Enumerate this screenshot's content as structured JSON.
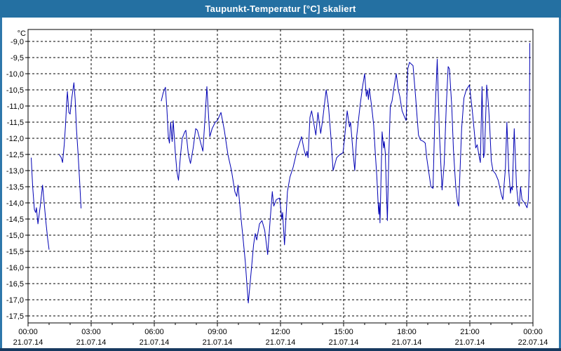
{
  "window": {
    "title": "Taupunkt-Temperatur [°C] skaliert"
  },
  "colors": {
    "titlebar_bg": "#2470a2",
    "titlebar_text": "#ffffff",
    "window_border_side": "#2e77ab",
    "window_border_bottom": "#17395f",
    "plot_background": "#ffffff",
    "plot_frame": "#000000",
    "grid": "#000000",
    "series_line": "#0000b4"
  },
  "chart_data": {
    "type": "line",
    "title": "Taupunkt-Temperatur [°C] skaliert",
    "legend_position": "none",
    "grid": {
      "style": "dashed",
      "color": "#000000",
      "x_step_hours": 3,
      "y_step": 0.5
    },
    "y_axis": {
      "unit_label": "°C",
      "tick_labels": [
        "-9,0",
        "-9,5",
        "-10,0",
        "-10,5",
        "-11,0",
        "-11,5",
        "-12,0",
        "-12,5",
        "-13,0",
        "-13,5",
        "-14,0",
        "-14,5",
        "-15,0",
        "-15,5",
        "-16,0",
        "-16,5",
        "-17,0",
        "-17,5"
      ],
      "tick_values": [
        -9.0,
        -9.5,
        -10.0,
        -10.5,
        -11.0,
        -11.5,
        -12.0,
        -12.5,
        -13.0,
        -13.5,
        -14.0,
        -14.5,
        -15.0,
        -15.5,
        -16.0,
        -16.5,
        -17.0,
        -17.5
      ],
      "range_shown": [
        -17.72,
        -8.63
      ]
    },
    "x_axis": {
      "hours_range": [
        0,
        24
      ],
      "major_step_hours": 3,
      "minor_step_hours": 1,
      "tick_times": [
        "00:00",
        "03:00",
        "06:00",
        "09:00",
        "12:00",
        "15:00",
        "18:00",
        "21:00",
        "00:00"
      ],
      "tick_dates": [
        "21.07.14",
        "21.07.14",
        "21.07.14",
        "21.07.14",
        "21.07.14",
        "21.07.14",
        "21.07.14",
        "21.07.14",
        "22.07.14"
      ]
    },
    "series": [
      {
        "name": "Taupunkt-Temperatur [°C] skaliert",
        "unit": "°C",
        "color": "#0000b4",
        "segments": [
          [
            [
              0.15,
              -12.6
            ],
            [
              0.22,
              -13.5
            ],
            [
              0.3,
              -14.2
            ],
            [
              0.36,
              -14.3
            ],
            [
              0.4,
              -14.15
            ],
            [
              0.47,
              -14.65
            ],
            [
              0.58,
              -14.1
            ],
            [
              0.69,
              -13.45
            ],
            [
              0.78,
              -14.1
            ],
            [
              0.85,
              -14.6
            ],
            [
              0.93,
              -15.1
            ],
            [
              1.0,
              -15.45
            ]
          ],
          [
            [
              1.48,
              -12.5
            ],
            [
              1.58,
              -12.6
            ],
            [
              1.64,
              -12.75
            ],
            [
              1.72,
              -12.2
            ],
            [
              1.78,
              -11.6
            ],
            [
              1.83,
              -10.95
            ],
            [
              1.87,
              -10.55
            ],
            [
              1.94,
              -11.2
            ],
            [
              2.0,
              -11.25
            ],
            [
              2.07,
              -10.8
            ],
            [
              2.18,
              -10.28
            ],
            [
              2.24,
              -10.8
            ],
            [
              2.3,
              -11.7
            ],
            [
              2.38,
              -12.5
            ],
            [
              2.45,
              -13.3
            ],
            [
              2.52,
              -14.17
            ]
          ],
          [
            [
              6.33,
              -10.85
            ],
            [
              6.42,
              -10.6
            ],
            [
              6.53,
              -10.42
            ],
            [
              6.6,
              -11.1
            ],
            [
              6.67,
              -11.95
            ],
            [
              6.72,
              -12.15
            ],
            [
              6.78,
              -11.5
            ],
            [
              6.85,
              -12.1
            ],
            [
              6.9,
              -11.45
            ],
            [
              7.0,
              -12.45
            ],
            [
              7.08,
              -13.05
            ],
            [
              7.15,
              -13.3
            ],
            [
              7.25,
              -12.5
            ],
            [
              7.33,
              -12.0
            ],
            [
              7.45,
              -11.8
            ],
            [
              7.5,
              -11.75
            ],
            [
              7.62,
              -12.5
            ],
            [
              7.72,
              -12.78
            ],
            [
              7.85,
              -12.3
            ],
            [
              7.97,
              -11.7
            ],
            [
              8.05,
              -11.75
            ],
            [
              8.17,
              -12.05
            ],
            [
              8.31,
              -12.4
            ],
            [
              8.42,
              -11.3
            ],
            [
              8.5,
              -10.4
            ],
            [
              8.58,
              -11.3
            ],
            [
              8.64,
              -11.95
            ],
            [
              8.75,
              -11.7
            ],
            [
              8.9,
              -11.5
            ],
            [
              9.0,
              -11.45
            ],
            [
              9.17,
              -11.2
            ],
            [
              9.33,
              -11.75
            ],
            [
              9.5,
              -12.5
            ],
            [
              9.67,
              -13.0
            ],
            [
              9.83,
              -13.65
            ],
            [
              9.92,
              -13.8
            ],
            [
              9.98,
              -13.45
            ],
            [
              10.11,
              -14.38
            ],
            [
              10.22,
              -15.1
            ],
            [
              10.33,
              -15.85
            ],
            [
              10.4,
              -16.5
            ],
            [
              10.47,
              -17.1
            ],
            [
              10.61,
              -16.1
            ],
            [
              10.72,
              -15.3
            ],
            [
              10.8,
              -14.95
            ],
            [
              10.87,
              -15.15
            ],
            [
              11.0,
              -14.65
            ],
            [
              11.12,
              -14.55
            ],
            [
              11.25,
              -14.85
            ],
            [
              11.39,
              -15.6
            ],
            [
              11.5,
              -14.6
            ],
            [
              11.61,
              -13.65
            ],
            [
              11.68,
              -14.1
            ],
            [
              11.8,
              -13.9
            ],
            [
              11.95,
              -13.85
            ],
            [
              12.0,
              -14.1
            ],
            [
              12.06,
              -14.5
            ],
            [
              12.1,
              -14.3
            ],
            [
              12.19,
              -15.3
            ],
            [
              12.33,
              -13.65
            ],
            [
              12.45,
              -13.2
            ],
            [
              12.6,
              -12.9
            ],
            [
              12.78,
              -12.4
            ],
            [
              13.0,
              -11.95
            ],
            [
              13.12,
              -12.35
            ],
            [
              13.2,
              -12.55
            ],
            [
              13.26,
              -12.4
            ],
            [
              13.31,
              -12.6
            ],
            [
              13.4,
              -11.35
            ],
            [
              13.48,
              -11.15
            ],
            [
              13.6,
              -11.6
            ],
            [
              13.68,
              -11.9
            ],
            [
              13.78,
              -11.2
            ],
            [
              13.85,
              -11.55
            ],
            [
              13.91,
              -11.85
            ],
            [
              14.0,
              -11.45
            ],
            [
              14.17,
              -10.5
            ],
            [
              14.28,
              -11.0
            ],
            [
              14.39,
              -11.9
            ],
            [
              14.5,
              -13.0
            ],
            [
              14.67,
              -12.6
            ],
            [
              14.83,
              -12.5
            ],
            [
              14.97,
              -12.45
            ],
            [
              15.03,
              -12.1
            ],
            [
              15.17,
              -11.15
            ],
            [
              15.28,
              -11.65
            ],
            [
              15.33,
              -11.5
            ],
            [
              15.45,
              -12.45
            ],
            [
              15.53,
              -13.0
            ],
            [
              15.62,
              -11.95
            ],
            [
              15.78,
              -11.0
            ],
            [
              15.9,
              -10.4
            ],
            [
              16.0,
              -10.0
            ],
            [
              16.08,
              -10.7
            ],
            [
              16.13,
              -10.5
            ],
            [
              16.18,
              -10.8
            ],
            [
              16.22,
              -10.45
            ],
            [
              16.33,
              -11.0
            ],
            [
              16.43,
              -11.6
            ],
            [
              16.5,
              -12.4
            ],
            [
              16.58,
              -13.2
            ],
            [
              16.64,
              -14.0
            ],
            [
              16.67,
              -14.35
            ],
            [
              16.7,
              -14.0
            ],
            [
              16.73,
              -14.62
            ],
            [
              16.83,
              -11.8
            ],
            [
              16.9,
              -12.3
            ],
            [
              16.93,
              -12.1
            ],
            [
              16.98,
              -12.45
            ],
            [
              17.03,
              -13.5
            ],
            [
              17.08,
              -14.55
            ],
            [
              17.15,
              -12.5
            ],
            [
              17.22,
              -11.0
            ],
            [
              17.3,
              -10.85
            ],
            [
              17.4,
              -10.4
            ],
            [
              17.5,
              -10.0
            ],
            [
              17.6,
              -10.5
            ],
            [
              17.67,
              -10.7
            ],
            [
              17.78,
              -11.15
            ],
            [
              17.9,
              -11.35
            ],
            [
              17.97,
              -11.45
            ],
            [
              18.05,
              -9.85
            ],
            [
              18.13,
              -9.65
            ],
            [
              18.3,
              -9.75
            ],
            [
              18.42,
              -10.7
            ],
            [
              18.5,
              -11.4
            ],
            [
              18.56,
              -11.9
            ],
            [
              18.65,
              -12.05
            ],
            [
              18.8,
              -12.1
            ],
            [
              18.88,
              -12.15
            ],
            [
              18.95,
              -12.6
            ],
            [
              19.06,
              -13.1
            ],
            [
              19.15,
              -13.5
            ],
            [
              19.25,
              -13.55
            ],
            [
              19.33,
              -11.5
            ],
            [
              19.45,
              -9.55
            ],
            [
              19.55,
              -11.8
            ],
            [
              19.68,
              -13.6
            ],
            [
              19.78,
              -12.8
            ],
            [
              19.88,
              -11.0
            ],
            [
              19.97,
              -9.78
            ],
            [
              20.03,
              -9.85
            ],
            [
              20.14,
              -11.0
            ],
            [
              20.22,
              -12.35
            ],
            [
              20.33,
              -13.5
            ],
            [
              20.42,
              -14.0
            ],
            [
              20.47,
              -14.1
            ],
            [
              20.61,
              -11.7
            ],
            [
              20.72,
              -10.75
            ],
            [
              20.83,
              -10.5
            ],
            [
              20.98,
              -10.35
            ],
            [
              21.11,
              -11.1
            ],
            [
              21.22,
              -11.85
            ],
            [
              21.28,
              -12.3
            ],
            [
              21.35,
              -12.2
            ],
            [
              21.44,
              -12.55
            ],
            [
              21.5,
              -12.75
            ],
            [
              21.58,
              -10.4
            ],
            [
              21.65,
              -12.6
            ],
            [
              21.7,
              -12.45
            ],
            [
              21.8,
              -10.35
            ],
            [
              21.89,
              -11.0
            ],
            [
              21.95,
              -11.7
            ],
            [
              22.02,
              -12.7
            ],
            [
              22.1,
              -13.0
            ],
            [
              22.22,
              -13.1
            ],
            [
              22.35,
              -13.3
            ],
            [
              22.5,
              -13.75
            ],
            [
              22.57,
              -13.9
            ],
            [
              22.69,
              -12.95
            ],
            [
              22.76,
              -11.5
            ],
            [
              22.85,
              -13.0
            ],
            [
              22.93,
              -13.7
            ],
            [
              22.97,
              -13.5
            ],
            [
              23.02,
              -13.6
            ],
            [
              23.11,
              -11.7
            ],
            [
              23.22,
              -13.5
            ],
            [
              23.3,
              -14.0
            ],
            [
              23.35,
              -14.1
            ],
            [
              23.41,
              -13.5
            ],
            [
              23.48,
              -13.9
            ],
            [
              23.6,
              -14.0
            ],
            [
              23.72,
              -14.15
            ],
            [
              23.78,
              -13.9
            ],
            [
              23.82,
              -13.0
            ],
            [
              23.85,
              -9.05
            ]
          ]
        ]
      }
    ]
  }
}
